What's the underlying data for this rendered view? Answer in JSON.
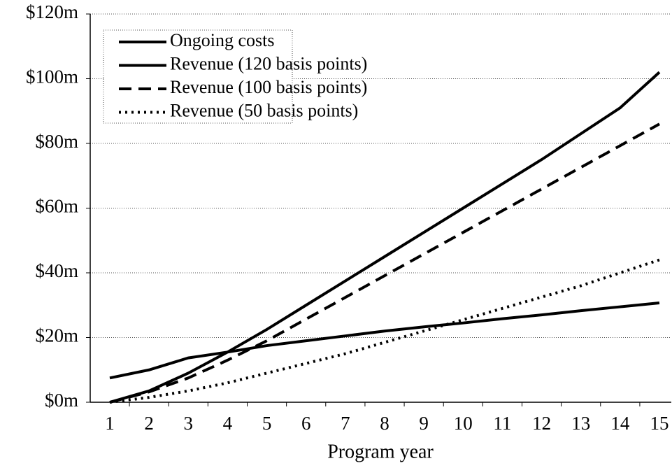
{
  "chart_data": {
    "type": "line",
    "xlabel": "Program year",
    "categories": [
      "1",
      "2",
      "3",
      "4",
      "5",
      "6",
      "7",
      "8",
      "9",
      "10",
      "11",
      "12",
      "13",
      "14",
      "15"
    ],
    "series": [
      {
        "name": "Ongoing costs",
        "color": "#000000",
        "style": "solid",
        "values": [
          7.5,
          10,
          13.7,
          15.5,
          17.5,
          19,
          20.5,
          22,
          23.3,
          24.5,
          25.8,
          27,
          28.3,
          29.5,
          30.7
        ]
      },
      {
        "name": "Revenue (120 basis points)",
        "color": "#000000",
        "style": "solid",
        "values": [
          0,
          3.5,
          9,
          15.5,
          22.5,
          30,
          37.5,
          45,
          52.5,
          60,
          67.5,
          75,
          83,
          91,
          102
        ]
      },
      {
        "name": "Revenue (100 basis points)",
        "color": "#000000",
        "style": "dashed",
        "values": [
          0,
          3.2,
          7.5,
          13,
          19,
          25.7,
          32.4,
          39.1,
          45.8,
          52.5,
          59.2,
          65.9,
          72.6,
          79.3,
          86
        ]
      },
      {
        "name": "Revenue (50 basis points)",
        "color": "#000000",
        "style": "dotted",
        "values": [
          0,
          1.5,
          3.5,
          6,
          9,
          12,
          15,
          18.5,
          22,
          25.5,
          29,
          32.5,
          36,
          40,
          44
        ]
      }
    ],
    "ylim": [
      0,
      120
    ],
    "yticks": [
      {
        "value": 0,
        "label": "$0m"
      },
      {
        "value": 20,
        "label": "$20m"
      },
      {
        "value": 40,
        "label": "$40m"
      },
      {
        "value": 60,
        "label": "$60m"
      },
      {
        "value": 80,
        "label": "$80m"
      },
      {
        "value": 100,
        "label": "$100m"
      },
      {
        "value": 120,
        "label": "$120m"
      }
    ],
    "grid": true,
    "legend": "upper left"
  }
}
